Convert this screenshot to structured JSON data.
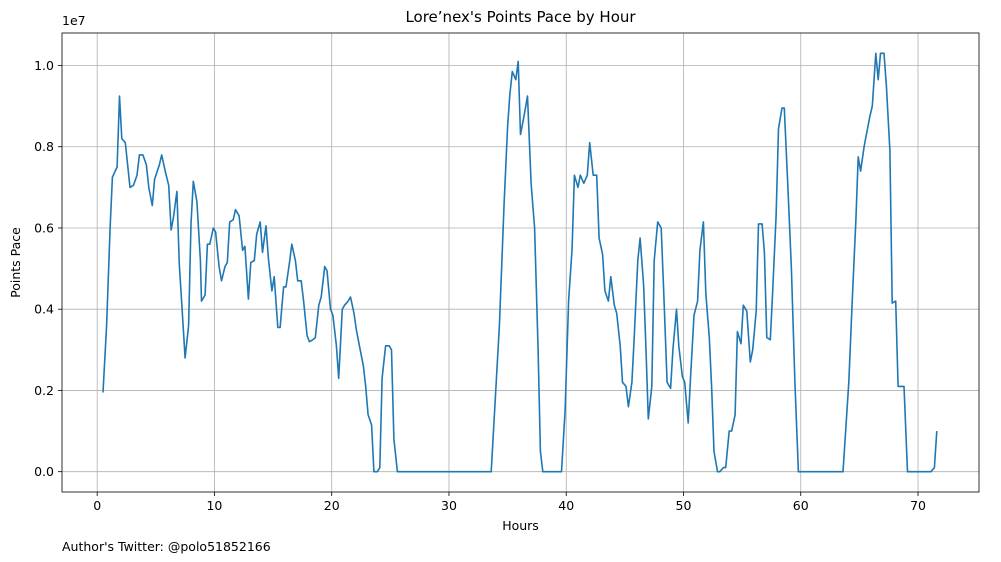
{
  "chart_data": {
    "type": "line",
    "title": "Lore’nex's Points Pace by Hour",
    "xlabel": "Hours",
    "ylabel": "Points Pace",
    "y_scale_label": "1e7",
    "footer_note": "Author's Twitter: @polo51852166",
    "xlim": [
      -3,
      75.2
    ],
    "ylim": [
      -0.05,
      1.08
    ],
    "x_ticks": [
      0,
      10,
      20,
      30,
      40,
      50,
      60,
      70
    ],
    "y_ticks": [
      0.0,
      0.2,
      0.4,
      0.6,
      0.8,
      1.0
    ],
    "x_tick_labels": [
      "0",
      "10",
      "20",
      "30",
      "40",
      "50",
      "60",
      "70"
    ],
    "y_tick_labels": [
      "0.0",
      "0.2",
      "0.4",
      "0.6",
      "0.8",
      "1.0"
    ],
    "grid": true,
    "colors": {
      "line": "#1f77b4",
      "grid": "#b0b0b0"
    },
    "series": [
      {
        "values": [
          [
            0.5,
            0.195
          ],
          [
            0.8,
            0.36
          ],
          [
            1.1,
            0.6
          ],
          [
            1.3,
            0.725
          ],
          [
            1.7,
            0.75
          ],
          [
            1.9,
            0.925
          ],
          [
            2.1,
            0.82
          ],
          [
            2.4,
            0.81
          ],
          [
            2.8,
            0.7
          ],
          [
            3.1,
            0.705
          ],
          [
            3.4,
            0.73
          ],
          [
            3.6,
            0.78
          ],
          [
            3.9,
            0.78
          ],
          [
            4.2,
            0.755
          ],
          [
            4.4,
            0.7
          ],
          [
            4.7,
            0.655
          ],
          [
            4.9,
            0.72
          ],
          [
            5.3,
            0.755
          ],
          [
            5.5,
            0.78
          ],
          [
            5.8,
            0.74
          ],
          [
            6.1,
            0.705
          ],
          [
            6.3,
            0.595
          ],
          [
            6.5,
            0.625
          ],
          [
            6.8,
            0.69
          ],
          [
            7.0,
            0.51
          ],
          [
            7.2,
            0.42
          ],
          [
            7.5,
            0.28
          ],
          [
            7.8,
            0.36
          ],
          [
            8.0,
            0.61
          ],
          [
            8.2,
            0.715
          ],
          [
            8.5,
            0.665
          ],
          [
            8.8,
            0.52
          ],
          [
            8.9,
            0.42
          ],
          [
            9.2,
            0.435
          ],
          [
            9.4,
            0.56
          ],
          [
            9.6,
            0.56
          ],
          [
            9.9,
            0.6
          ],
          [
            10.1,
            0.59
          ],
          [
            10.4,
            0.505
          ],
          [
            10.6,
            0.47
          ],
          [
            10.9,
            0.505
          ],
          [
            11.1,
            0.515
          ],
          [
            11.3,
            0.615
          ],
          [
            11.6,
            0.62
          ],
          [
            11.8,
            0.645
          ],
          [
            12.1,
            0.63
          ],
          [
            12.4,
            0.545
          ],
          [
            12.6,
            0.555
          ],
          [
            12.9,
            0.425
          ],
          [
            13.1,
            0.515
          ],
          [
            13.4,
            0.52
          ],
          [
            13.6,
            0.585
          ],
          [
            13.9,
            0.615
          ],
          [
            14.1,
            0.54
          ],
          [
            14.4,
            0.605
          ],
          [
            14.6,
            0.525
          ],
          [
            14.9,
            0.445
          ],
          [
            15.1,
            0.48
          ],
          [
            15.4,
            0.355
          ],
          [
            15.6,
            0.355
          ],
          [
            15.9,
            0.455
          ],
          [
            16.1,
            0.455
          ],
          [
            16.4,
            0.515
          ],
          [
            16.6,
            0.56
          ],
          [
            16.9,
            0.52
          ],
          [
            17.1,
            0.47
          ],
          [
            17.4,
            0.47
          ],
          [
            17.6,
            0.42
          ],
          [
            17.9,
            0.335
          ],
          [
            18.1,
            0.32
          ],
          [
            18.4,
            0.325
          ],
          [
            18.6,
            0.33
          ],
          [
            18.9,
            0.41
          ],
          [
            19.1,
            0.43
          ],
          [
            19.4,
            0.505
          ],
          [
            19.6,
            0.495
          ],
          [
            19.9,
            0.4
          ],
          [
            20.1,
            0.385
          ],
          [
            20.4,
            0.31
          ],
          [
            20.6,
            0.23
          ],
          [
            20.9,
            0.4
          ],
          [
            21.1,
            0.41
          ],
          [
            21.4,
            0.42
          ],
          [
            21.6,
            0.43
          ],
          [
            21.9,
            0.39
          ],
          [
            22.1,
            0.35
          ],
          [
            22.4,
            0.305
          ],
          [
            22.7,
            0.26
          ],
          [
            22.9,
            0.21
          ],
          [
            23.1,
            0.14
          ],
          [
            23.4,
            0.115
          ],
          [
            23.6,
            0.0
          ],
          [
            23.9,
            0.0
          ],
          [
            24.1,
            0.01
          ],
          [
            24.3,
            0.23
          ],
          [
            24.6,
            0.31
          ],
          [
            24.9,
            0.31
          ],
          [
            25.1,
            0.3
          ],
          [
            25.3,
            0.08
          ],
          [
            25.6,
            0.0
          ],
          [
            33.6,
            0.0
          ],
          [
            34.3,
            0.36
          ],
          [
            34.7,
            0.66
          ],
          [
            35.0,
            0.85
          ],
          [
            35.2,
            0.93
          ],
          [
            35.4,
            0.985
          ],
          [
            35.7,
            0.965
          ],
          [
            35.9,
            1.01
          ],
          [
            36.1,
            0.83
          ],
          [
            36.4,
            0.875
          ],
          [
            36.7,
            0.925
          ],
          [
            37.0,
            0.71
          ],
          [
            37.3,
            0.6
          ],
          [
            37.6,
            0.3
          ],
          [
            37.8,
            0.05
          ],
          [
            38.0,
            0.0
          ],
          [
            39.6,
            0.0
          ],
          [
            39.9,
            0.15
          ],
          [
            40.2,
            0.42
          ],
          [
            40.5,
            0.55
          ],
          [
            40.7,
            0.73
          ],
          [
            41.0,
            0.7
          ],
          [
            41.2,
            0.73
          ],
          [
            41.5,
            0.71
          ],
          [
            41.8,
            0.73
          ],
          [
            42.0,
            0.81
          ],
          [
            42.3,
            0.73
          ],
          [
            42.6,
            0.73
          ],
          [
            42.8,
            0.575
          ],
          [
            43.1,
            0.535
          ],
          [
            43.3,
            0.445
          ],
          [
            43.6,
            0.42
          ],
          [
            43.8,
            0.48
          ],
          [
            44.1,
            0.41
          ],
          [
            44.3,
            0.39
          ],
          [
            44.6,
            0.31
          ],
          [
            44.8,
            0.22
          ],
          [
            45.1,
            0.21
          ],
          [
            45.3,
            0.16
          ],
          [
            45.6,
            0.22
          ],
          [
            45.8,
            0.33
          ],
          [
            46.1,
            0.52
          ],
          [
            46.3,
            0.575
          ],
          [
            46.6,
            0.46
          ],
          [
            46.8,
            0.3
          ],
          [
            47.0,
            0.13
          ],
          [
            47.3,
            0.21
          ],
          [
            47.5,
            0.52
          ],
          [
            47.8,
            0.615
          ],
          [
            48.1,
            0.6
          ],
          [
            48.3,
            0.45
          ],
          [
            48.6,
            0.22
          ],
          [
            48.9,
            0.205
          ],
          [
            49.1,
            0.3
          ],
          [
            49.4,
            0.4
          ],
          [
            49.6,
            0.31
          ],
          [
            49.9,
            0.235
          ],
          [
            50.1,
            0.22
          ],
          [
            50.4,
            0.12
          ],
          [
            50.6,
            0.23
          ],
          [
            50.9,
            0.385
          ],
          [
            51.2,
            0.42
          ],
          [
            51.4,
            0.545
          ],
          [
            51.7,
            0.615
          ],
          [
            51.9,
            0.44
          ],
          [
            52.2,
            0.33
          ],
          [
            52.4,
            0.21
          ],
          [
            52.6,
            0.05
          ],
          [
            52.9,
            0.0
          ],
          [
            53.1,
            0.0
          ],
          [
            53.4,
            0.01
          ],
          [
            53.6,
            0.01
          ],
          [
            53.9,
            0.1
          ],
          [
            54.1,
            0.1
          ],
          [
            54.4,
            0.14
          ],
          [
            54.6,
            0.345
          ],
          [
            54.9,
            0.315
          ],
          [
            55.1,
            0.41
          ],
          [
            55.4,
            0.395
          ],
          [
            55.7,
            0.27
          ],
          [
            55.9,
            0.3
          ],
          [
            56.2,
            0.395
          ],
          [
            56.4,
            0.61
          ],
          [
            56.7,
            0.61
          ],
          [
            56.9,
            0.54
          ],
          [
            57.1,
            0.33
          ],
          [
            57.4,
            0.325
          ],
          [
            57.6,
            0.44
          ],
          [
            57.9,
            0.63
          ],
          [
            58.1,
            0.845
          ],
          [
            58.4,
            0.895
          ],
          [
            58.6,
            0.895
          ],
          [
            58.9,
            0.7
          ],
          [
            59.2,
            0.5
          ],
          [
            59.5,
            0.22
          ],
          [
            59.8,
            0.0
          ],
          [
            63.6,
            0.0
          ],
          [
            64.1,
            0.22
          ],
          [
            64.4,
            0.43
          ],
          [
            64.7,
            0.62
          ],
          [
            64.9,
            0.775
          ],
          [
            65.1,
            0.74
          ],
          [
            65.4,
            0.8
          ],
          [
            65.6,
            0.83
          ],
          [
            65.9,
            0.875
          ],
          [
            66.1,
            0.9
          ],
          [
            66.4,
            1.03
          ],
          [
            66.6,
            0.965
          ],
          [
            66.8,
            1.03
          ],
          [
            67.1,
            1.03
          ],
          [
            67.3,
            0.95
          ],
          [
            67.6,
            0.79
          ],
          [
            67.8,
            0.415
          ],
          [
            68.1,
            0.42
          ],
          [
            68.3,
            0.21
          ],
          [
            68.6,
            0.21
          ],
          [
            68.8,
            0.21
          ],
          [
            69.1,
            0.0
          ],
          [
            71.1,
            0.0
          ],
          [
            71.4,
            0.01
          ],
          [
            71.6,
            0.1
          ]
        ]
      }
    ]
  }
}
